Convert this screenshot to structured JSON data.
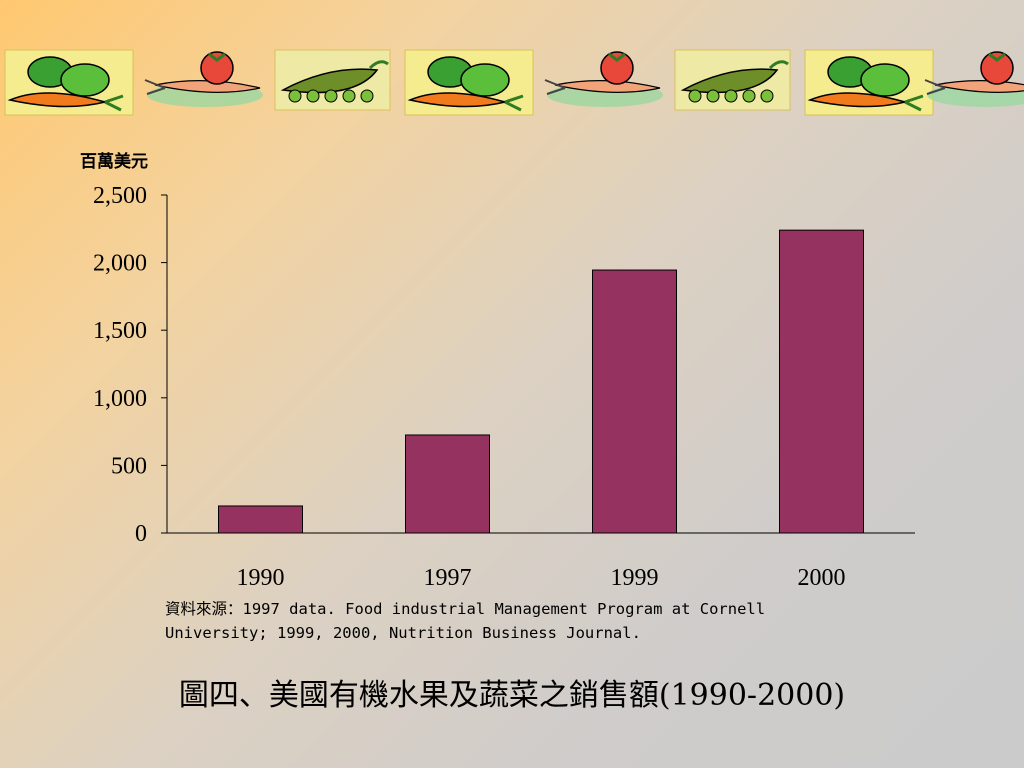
{
  "chart_data": {
    "type": "bar",
    "categories": [
      "1990",
      "1997",
      "1999",
      "2000"
    ],
    "values": [
      200,
      725,
      1945,
      2240
    ],
    "ylabel": "百萬美元",
    "ylim": [
      0,
      2500
    ],
    "yticks": [
      "0",
      "500",
      "1,000",
      "1,500",
      "2,000",
      "2,500"
    ],
    "bar_color": "#96325f",
    "grid": false
  },
  "source_note": "資料來源：1997 data. Food industrial Management Program at Cornell University; 1999, 2000, Nutrition Business Journal.",
  "caption": "圖四、美國有機水果及蔬菜之銷售額(1990-2000)",
  "banner_icons": [
    "peppers-carrot-icon",
    "tomato-on-knife-icon",
    "peas-in-pod-icon",
    "peppers-carrot-icon",
    "tomato-on-knife-icon",
    "peas-in-pod-icon",
    "peppers-carrot-icon",
    "tomato-on-knife-icon"
  ]
}
